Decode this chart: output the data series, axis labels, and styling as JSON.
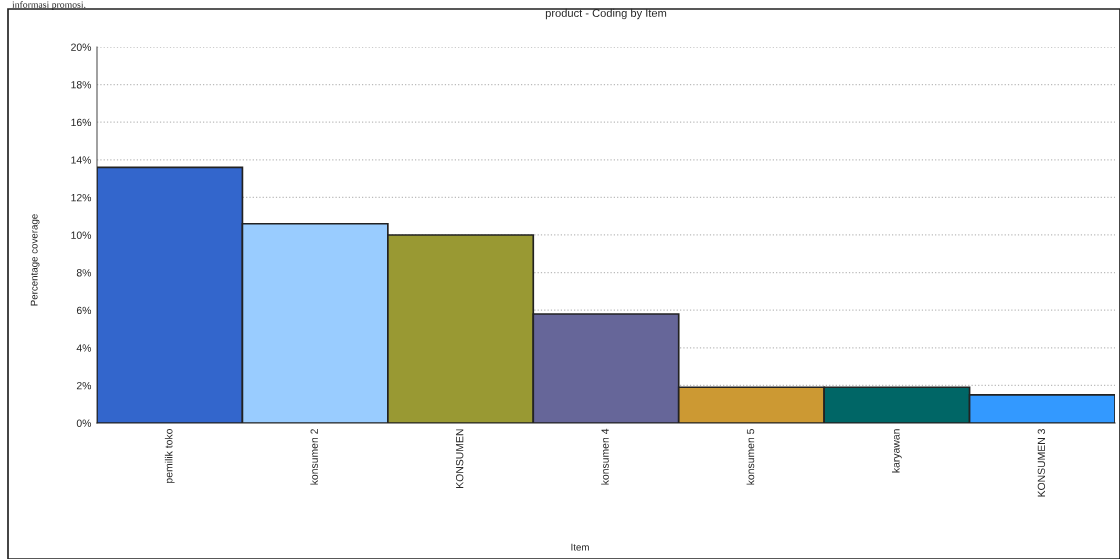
{
  "chart_data": {
    "type": "bar",
    "title": "product - Coding by Item",
    "xlabel": "Item",
    "ylabel": "Percentage coverage",
    "categories": [
      "pemilik toko",
      "konsumen 2",
      "KONSUMEN",
      "konsumen 4",
      "konsumen 5",
      "karyawan",
      "KONSUMEN 3"
    ],
    "values": [
      13.6,
      10.6,
      10.0,
      5.8,
      1.9,
      1.9,
      1.5
    ],
    "colors": [
      "#3366cc",
      "#99ccff",
      "#999933",
      "#666699",
      "#cc9933",
      "#006666",
      "#3399ff"
    ],
    "ylim": [
      0,
      20
    ],
    "yticks": [
      {
        "value": 0,
        "label": "0%"
      },
      {
        "value": 2,
        "label": "2%"
      },
      {
        "value": 4,
        "label": "4%"
      },
      {
        "value": 6,
        "label": "6%"
      },
      {
        "value": 8,
        "label": "8%"
      },
      {
        "value": 10,
        "label": "10%"
      },
      {
        "value": 12,
        "label": "12%"
      },
      {
        "value": 14,
        "label": "14%"
      },
      {
        "value": 16,
        "label": "16%"
      },
      {
        "value": 18,
        "label": "18%"
      },
      {
        "value": 20,
        "label": "20%"
      }
    ],
    "grid": "y",
    "legend": false,
    "annotations": [
      "informasi promosi."
    ]
  }
}
